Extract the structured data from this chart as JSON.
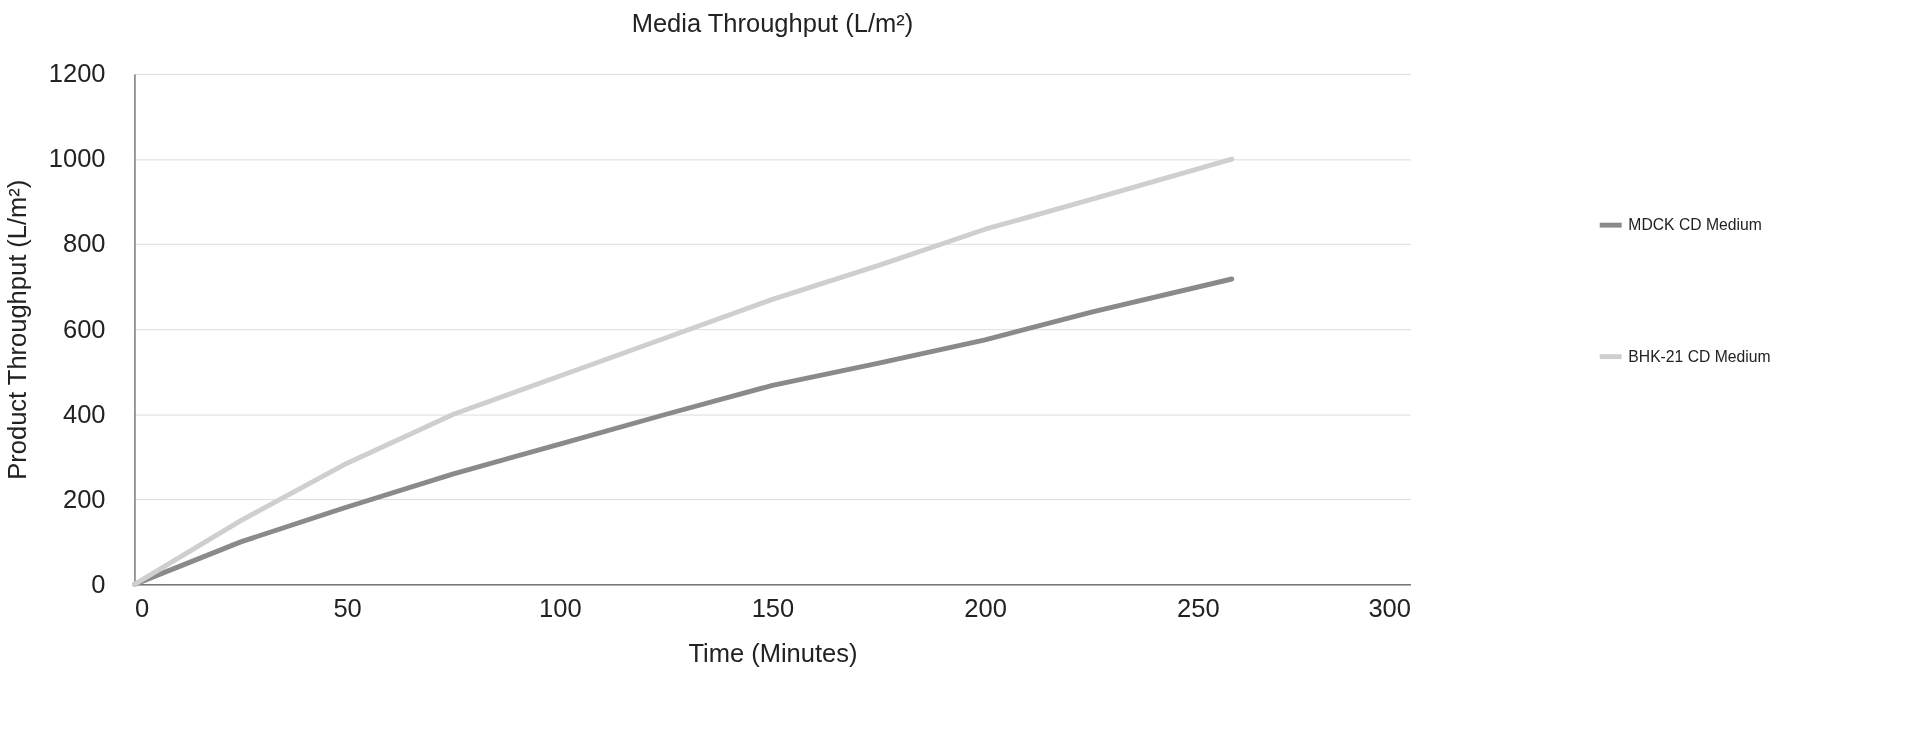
{
  "chart_data": {
    "type": "line",
    "title": "Media Throughput (L/m²)",
    "xlabel": "Time (Minutes)",
    "ylabel": "Product Throughput (L/m²)",
    "x": [
      0,
      25,
      50,
      75,
      100,
      125,
      150,
      175,
      200,
      225,
      258
    ],
    "series": [
      {
        "name": "MDCK CD Medium",
        "color": "#8a8a8d",
        "values": [
          0,
          100,
          182,
          260,
          330,
          400,
          468,
          520,
          575,
          640,
          718
        ]
      },
      {
        "name": "BHK-21 CD Medium",
        "color": "#cfcfcf",
        "values": [
          0,
          150,
          285,
          400,
          490,
          580,
          670,
          750,
          835,
          905,
          1000
        ]
      }
    ],
    "xlim": [
      0,
      300
    ],
    "xticks": [
      0,
      50,
      100,
      150,
      200,
      250,
      300
    ],
    "ylim": [
      0,
      1200
    ],
    "yticks": [
      0,
      200,
      400,
      600,
      800,
      1000,
      1200
    ],
    "grid": "y",
    "legend": "right",
    "marker": "none",
    "line_style": "solid"
  }
}
